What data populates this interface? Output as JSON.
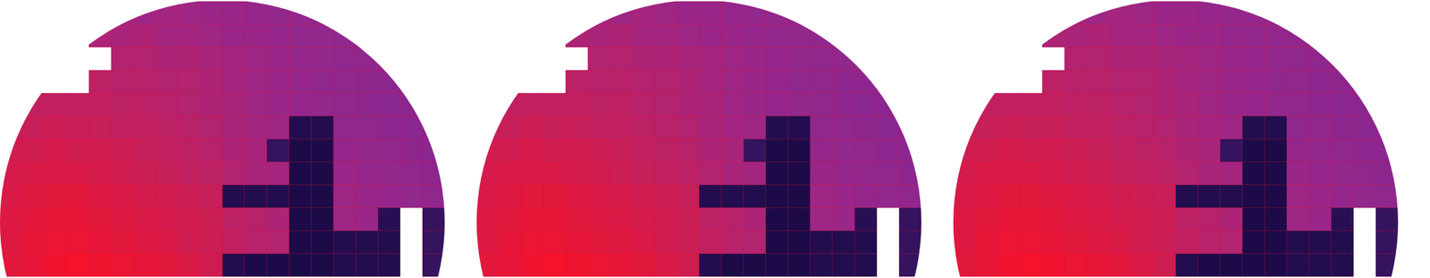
{
  "chart_data": [
    {
      "type": "heatmap",
      "tick_labels": false,
      "cells": [
        [
          null,
          null,
          null,
          null,
          null,
          62,
          60,
          62,
          60,
          58,
          58,
          56,
          55,
          55,
          54,
          null,
          null,
          null,
          null,
          null
        ],
        [
          null,
          null,
          null,
          null,
          66,
          64,
          66,
          62,
          62,
          60,
          58,
          58,
          56,
          55,
          55,
          54,
          54,
          null,
          null,
          null
        ],
        [
          null,
          null,
          null,
          null,
          null,
          68,
          68,
          66,
          66,
          64,
          62,
          60,
          58,
          56,
          55,
          54,
          54,
          53,
          null,
          null
        ],
        [
          null,
          null,
          null,
          null,
          72,
          70,
          70,
          68,
          68,
          66,
          62,
          60,
          58,
          56,
          54,
          54,
          53,
          53,
          52,
          null
        ],
        [
          null,
          74,
          74,
          74,
          74,
          72,
          72,
          70,
          68,
          66,
          64,
          60,
          58,
          56,
          55,
          54,
          53,
          52,
          52,
          null
        ],
        [
          76,
          76,
          78,
          76,
          76,
          74,
          74,
          72,
          70,
          68,
          64,
          62,
          60,
          14,
          14,
          54,
          54,
          53,
          52,
          52
        ],
        [
          80,
          80,
          82,
          80,
          80,
          78,
          76,
          74,
          72,
          70,
          66,
          64,
          20,
          12,
          12,
          56,
          55,
          54,
          53,
          52
        ],
        [
          82,
          84,
          84,
          84,
          82,
          80,
          78,
          76,
          74,
          72,
          68,
          64,
          62,
          12,
          12,
          58,
          56,
          55,
          54,
          53
        ],
        [
          84,
          86,
          88,
          88,
          86,
          84,
          82,
          80,
          78,
          76,
          14,
          14,
          14,
          12,
          12,
          60,
          58,
          56,
          55,
          54
        ],
        [
          86,
          88,
          90,
          90,
          88,
          86,
          84,
          82,
          80,
          78,
          72,
          70,
          66,
          12,
          12,
          60,
          58,
          16,
          null,
          20
        ],
        [
          86,
          90,
          92,
          92,
          90,
          88,
          86,
          84,
          80,
          78,
          74,
          70,
          68,
          12,
          12,
          14,
          14,
          14,
          null,
          20
        ],
        [
          88,
          90,
          94,
          96,
          94,
          92,
          90,
          88,
          84,
          80,
          14,
          12,
          12,
          12,
          12,
          14,
          14,
          14,
          null,
          20
        ]
      ]
    },
    {
      "type": "heatmap",
      "tick_labels": false,
      "cells": [
        [
          null,
          null,
          null,
          null,
          null,
          62,
          60,
          62,
          60,
          58,
          58,
          56,
          55,
          55,
          54,
          null,
          null,
          null,
          null,
          null
        ],
        [
          null,
          null,
          null,
          null,
          66,
          64,
          66,
          62,
          62,
          60,
          58,
          58,
          56,
          55,
          55,
          54,
          54,
          null,
          null,
          null
        ],
        [
          null,
          null,
          null,
          null,
          null,
          68,
          68,
          66,
          66,
          64,
          62,
          60,
          58,
          56,
          55,
          54,
          54,
          53,
          null,
          null
        ],
        [
          null,
          null,
          null,
          null,
          72,
          70,
          70,
          68,
          68,
          66,
          62,
          60,
          58,
          56,
          54,
          54,
          53,
          53,
          52,
          null
        ],
        [
          null,
          74,
          74,
          74,
          74,
          72,
          72,
          70,
          68,
          66,
          64,
          60,
          58,
          56,
          55,
          54,
          53,
          52,
          52,
          null
        ],
        [
          76,
          76,
          78,
          76,
          76,
          74,
          74,
          72,
          70,
          68,
          64,
          62,
          60,
          14,
          14,
          54,
          54,
          53,
          52,
          52
        ],
        [
          80,
          80,
          82,
          80,
          80,
          78,
          76,
          74,
          72,
          70,
          66,
          64,
          20,
          12,
          12,
          56,
          55,
          54,
          53,
          52
        ],
        [
          82,
          84,
          84,
          84,
          82,
          80,
          78,
          76,
          74,
          72,
          68,
          64,
          62,
          12,
          12,
          58,
          56,
          55,
          54,
          53
        ],
        [
          84,
          86,
          88,
          88,
          86,
          84,
          82,
          80,
          78,
          76,
          14,
          14,
          14,
          12,
          12,
          60,
          58,
          56,
          55,
          54
        ],
        [
          86,
          88,
          90,
          90,
          88,
          86,
          84,
          82,
          80,
          78,
          72,
          70,
          66,
          12,
          12,
          60,
          58,
          16,
          null,
          20
        ],
        [
          86,
          90,
          92,
          92,
          90,
          88,
          86,
          84,
          80,
          78,
          74,
          70,
          68,
          12,
          12,
          14,
          14,
          14,
          null,
          20
        ],
        [
          88,
          90,
          94,
          96,
          94,
          92,
          90,
          88,
          84,
          80,
          14,
          12,
          12,
          12,
          12,
          14,
          14,
          14,
          null,
          20
        ]
      ]
    },
    {
      "type": "heatmap",
      "tick_labels": false,
      "cells": [
        [
          null,
          null,
          null,
          null,
          null,
          62,
          60,
          62,
          60,
          58,
          58,
          56,
          55,
          55,
          54,
          null,
          null,
          null,
          null,
          null
        ],
        [
          null,
          null,
          null,
          null,
          66,
          64,
          66,
          62,
          62,
          60,
          58,
          58,
          56,
          55,
          55,
          54,
          54,
          null,
          null,
          null
        ],
        [
          null,
          null,
          null,
          null,
          null,
          68,
          68,
          66,
          66,
          64,
          62,
          60,
          58,
          56,
          55,
          54,
          54,
          53,
          null,
          null
        ],
        [
          null,
          null,
          null,
          null,
          72,
          70,
          70,
          68,
          68,
          66,
          62,
          60,
          58,
          56,
          54,
          54,
          53,
          53,
          52,
          null
        ],
        [
          null,
          74,
          74,
          74,
          74,
          72,
          72,
          70,
          68,
          66,
          64,
          60,
          58,
          56,
          55,
          54,
          53,
          52,
          52,
          null
        ],
        [
          76,
          76,
          78,
          76,
          76,
          74,
          74,
          72,
          70,
          68,
          64,
          62,
          60,
          14,
          14,
          54,
          54,
          53,
          52,
          52
        ],
        [
          80,
          80,
          82,
          80,
          80,
          78,
          76,
          74,
          72,
          70,
          66,
          64,
          20,
          12,
          12,
          56,
          55,
          54,
          53,
          52
        ],
        [
          82,
          84,
          84,
          84,
          82,
          80,
          78,
          76,
          74,
          72,
          68,
          64,
          62,
          12,
          12,
          58,
          56,
          55,
          54,
          53
        ],
        [
          84,
          86,
          88,
          88,
          86,
          84,
          82,
          80,
          78,
          76,
          14,
          14,
          14,
          12,
          12,
          60,
          58,
          56,
          55,
          54
        ],
        [
          86,
          88,
          90,
          90,
          88,
          86,
          84,
          82,
          80,
          78,
          72,
          70,
          66,
          12,
          12,
          60,
          58,
          16,
          null,
          20
        ],
        [
          86,
          90,
          92,
          92,
          90,
          88,
          86,
          84,
          80,
          78,
          74,
          70,
          68,
          12,
          12,
          14,
          14,
          14,
          null,
          20
        ],
        [
          88,
          90,
          94,
          96,
          94,
          92,
          90,
          88,
          84,
          80,
          14,
          12,
          12,
          12,
          12,
          14,
          14,
          14,
          null,
          20
        ]
      ]
    }
  ]
}
